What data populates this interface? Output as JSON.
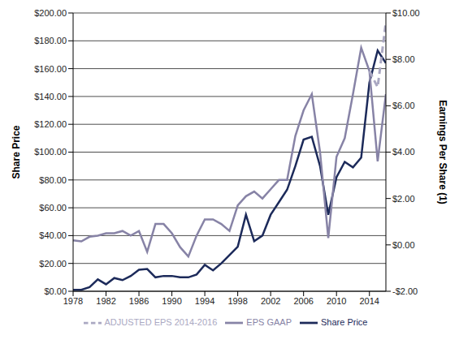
{
  "chart_data": {
    "type": "line",
    "x": [
      1978,
      1979,
      1980,
      1981,
      1982,
      1983,
      1984,
      1985,
      1986,
      1987,
      1988,
      1989,
      1990,
      1991,
      1992,
      1993,
      1994,
      1995,
      1996,
      1997,
      1998,
      1999,
      2000,
      2001,
      2002,
      2003,
      2004,
      2005,
      2006,
      2007,
      2008,
      2009,
      2010,
      2011,
      2012,
      2013,
      2014,
      2015,
      2016
    ],
    "xlim": [
      1978,
      2016
    ],
    "xticks": [
      1978,
      1982,
      1986,
      1990,
      1994,
      1998,
      2002,
      2006,
      2010,
      2014
    ],
    "ylabel": "Share Price",
    "y2label": "Earnings Per Share (1)",
    "ylim": [
      0,
      200
    ],
    "yticks": [
      {
        "value": 0,
        "label": "$0.00"
      },
      {
        "value": 20,
        "label": "$20.00"
      },
      {
        "value": 40,
        "label": "$40.00"
      },
      {
        "value": 60,
        "label": "$60.00"
      },
      {
        "value": 80,
        "label": "$80.00"
      },
      {
        "value": 100,
        "label": "$100.00"
      },
      {
        "value": 120,
        "label": "$120.00"
      },
      {
        "value": 140,
        "label": "$140.00"
      },
      {
        "value": 160,
        "label": "$160.00"
      },
      {
        "value": 180,
        "label": "$180.00"
      },
      {
        "value": 200,
        "label": "$200.00"
      }
    ],
    "y2lim": [
      -2,
      10
    ],
    "y2ticks": [
      {
        "value": -2,
        "label": "-$2.00"
      },
      {
        "value": 0,
        "label": "$0.00"
      },
      {
        "value": 2,
        "label": "$2.00"
      },
      {
        "value": 4,
        "label": "$4.00"
      },
      {
        "value": 6,
        "label": "$6.00"
      },
      {
        "value": 8,
        "label": "$8.00"
      },
      {
        "value": 10,
        "label": "$10.00"
      }
    ],
    "grid": true,
    "legend": "bottom",
    "series": [
      {
        "name": "Share Price",
        "color": "#1c2a5a",
        "line_style": "solid",
        "values": [
          1,
          1,
          3,
          8.5,
          5,
          9.5,
          8,
          11,
          15.5,
          16,
          10,
          11,
          11,
          10,
          10,
          12,
          19,
          15,
          20,
          26,
          32,
          55,
          36,
          40,
          55,
          64,
          73,
          90,
          109,
          111,
          90,
          55,
          82,
          93,
          89,
          96,
          150,
          173,
          164
        ]
      },
      {
        "name": "EPS GAAP",
        "color": "#8783a6",
        "line_style": "solid",
        "axis": "y2",
        "values": [
          0.2,
          0.15,
          0.35,
          0.4,
          0.5,
          0.5,
          0.6,
          0.4,
          0.6,
          -0.3,
          0.9,
          0.9,
          0.5,
          -0.1,
          -0.5,
          0.4,
          1.1,
          1.1,
          0.9,
          0.6,
          1.7,
          2.1,
          2.3,
          2.0,
          2.4,
          2.8,
          2.8,
          4.7,
          5.8,
          6.5,
          4.0,
          0.3,
          3.8,
          4.6,
          6.5,
          8.5,
          7.5,
          3.6,
          6.5
        ]
      },
      {
        "name": "ADJUSTED EPS 2014-2016",
        "color": "#aaa8c2",
        "line_style": "dashed",
        "axis": "y2",
        "values": [
          null,
          null,
          null,
          null,
          null,
          null,
          null,
          null,
          null,
          null,
          null,
          null,
          null,
          null,
          null,
          null,
          null,
          null,
          null,
          null,
          null,
          null,
          null,
          null,
          null,
          null,
          null,
          null,
          null,
          null,
          null,
          null,
          null,
          null,
          null,
          null,
          7.5,
          6.8,
          9.6
        ]
      }
    ]
  }
}
